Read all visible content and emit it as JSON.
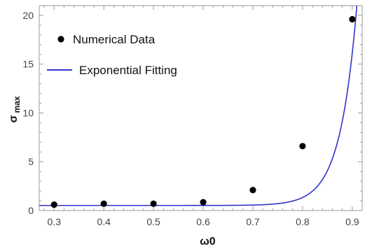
{
  "chart_data": {
    "type": "scatter",
    "title": "",
    "xlabel": "ω0",
    "ylabel_main": "σ",
    "ylabel_sub": "max",
    "xlim": [
      0.27,
      0.92
    ],
    "ylim": [
      0,
      21
    ],
    "xticks": [
      "0.3",
      "0.4",
      "0.5",
      "0.6",
      "0.7",
      "0.8",
      "0.9"
    ],
    "xtick_values": [
      0.3,
      0.4,
      0.5,
      0.6,
      0.7,
      0.8,
      0.9
    ],
    "yticks": [
      "0",
      "5",
      "10",
      "15",
      "20"
    ],
    "ytick_values": [
      0,
      5,
      10,
      15,
      20
    ],
    "legend_position": "top-left",
    "grid": false,
    "series": [
      {
        "name": "Numerical Data",
        "kind": "points",
        "color": "#000000",
        "x": [
          0.3,
          0.4,
          0.5,
          0.6,
          0.7,
          0.8,
          0.9
        ],
        "y": [
          0.6,
          0.7,
          0.7,
          0.85,
          2.1,
          6.6,
          19.6
        ]
      },
      {
        "name": "Exponential Fitting",
        "kind": "line",
        "color": "#3333cc",
        "model": {
          "form": "a + b*exp(c*x)",
          "a": 0.52,
          "b": 4.6e-11,
          "c": 29.5
        }
      }
    ]
  }
}
